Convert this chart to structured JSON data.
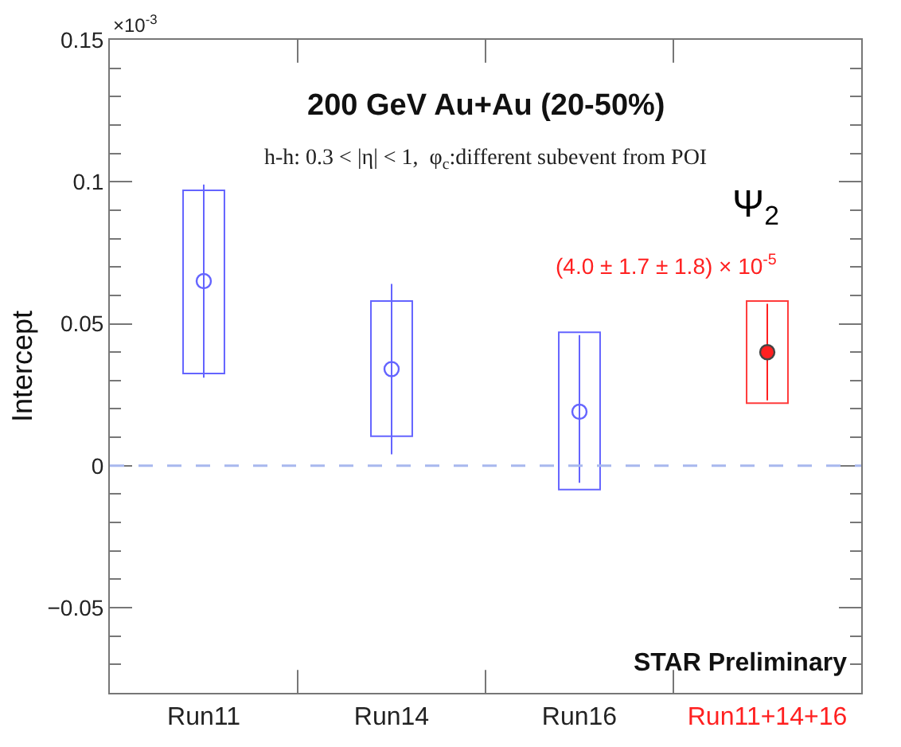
{
  "chart_data": {
    "type": "scatter",
    "title": "200 GeV Au+Au (20-50%)",
    "subtitle": "h-h: 0.3 < |η| < 1,  φ$_{c}$:different subevent from POI",
    "ylabel": "Intercept",
    "categories": [
      "Run11",
      "Run14",
      "Run16",
      "Run11+14+16"
    ],
    "series": [
      {
        "type": "bar",
        "x": [
          "Run11",
          "Run14",
          "Run16"
        ],
        "color": "#6464ff",
        "base": [
          0.0325,
          0.0104,
          -0.0084
        ],
        "values": [
          0.0645,
          0.0476,
          0.0554
        ]
      },
      {
        "x": [
          "Run11",
          "Run14",
          "Run16"
        ],
        "color": "#6464ff",
        "values": [
          0.065,
          0.034,
          0.019
        ],
        "errors": [
          [
            0.031,
            0.099
          ],
          [
            0.004,
            0.064
          ],
          [
            -0.006,
            0.046
          ]
        ]
      },
      {
        "type": "bar",
        "x": [
          "Run11+14+16"
        ],
        "color": "#ff3b3b",
        "base": [
          0.022
        ],
        "values": [
          0.036
        ]
      },
      {
        "x": [
          "Run11+14+16"
        ],
        "color": "#ff2020",
        "values": [
          0.04
        ],
        "errors": [
          [
            0.023,
            0.057
          ]
        ]
      }
    ],
    "ylim": [
      -0.08,
      0.15
    ],
    "yticks": [
      -0.05,
      0,
      0.05,
      0.1,
      0.15
    ],
    "ref_lines": [
      {
        "axis": "y",
        "value": 0,
        "color": "#a8b8ee",
        "line_style": "dashed"
      }
    ],
    "annotations": [
      "×10$^{-3}$",
      "Ψ$_{2}$",
      "(4.0 ± 1.7 ± 1.8) × 10$^{-5}$",
      "STAR Preliminary"
    ],
    "grid": false
  }
}
